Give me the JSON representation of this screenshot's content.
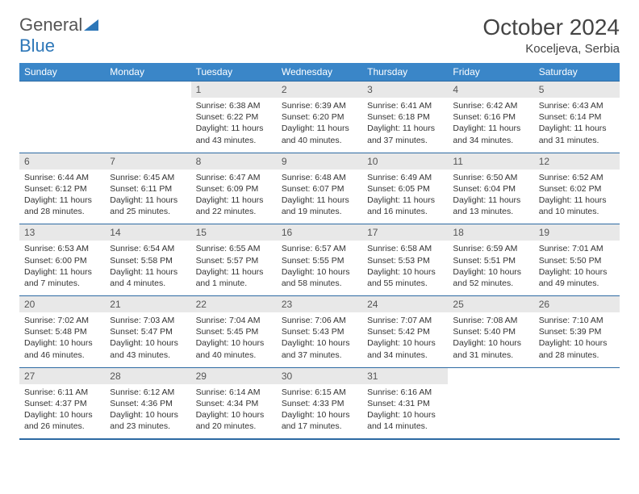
{
  "brand": {
    "name1": "General",
    "name2": "Blue"
  },
  "title": "October 2024",
  "location": "Koceljeva, Serbia",
  "colors": {
    "header_bg": "#3a86c8",
    "border": "#2d6aa3",
    "daynum_bg": "#e8e8e8",
    "text": "#333333",
    "brand_blue": "#2d77b8"
  },
  "day_headers": [
    "Sunday",
    "Monday",
    "Tuesday",
    "Wednesday",
    "Thursday",
    "Friday",
    "Saturday"
  ],
  "weeks": [
    {
      "nums": [
        "",
        "",
        "1",
        "2",
        "3",
        "4",
        "5"
      ],
      "cells": [
        null,
        null,
        {
          "sr": "Sunrise: 6:38 AM",
          "ss": "Sunset: 6:22 PM",
          "dl": "Daylight: 11 hours and 43 minutes."
        },
        {
          "sr": "Sunrise: 6:39 AM",
          "ss": "Sunset: 6:20 PM",
          "dl": "Daylight: 11 hours and 40 minutes."
        },
        {
          "sr": "Sunrise: 6:41 AM",
          "ss": "Sunset: 6:18 PM",
          "dl": "Daylight: 11 hours and 37 minutes."
        },
        {
          "sr": "Sunrise: 6:42 AM",
          "ss": "Sunset: 6:16 PM",
          "dl": "Daylight: 11 hours and 34 minutes."
        },
        {
          "sr": "Sunrise: 6:43 AM",
          "ss": "Sunset: 6:14 PM",
          "dl": "Daylight: 11 hours and 31 minutes."
        }
      ]
    },
    {
      "nums": [
        "6",
        "7",
        "8",
        "9",
        "10",
        "11",
        "12"
      ],
      "cells": [
        {
          "sr": "Sunrise: 6:44 AM",
          "ss": "Sunset: 6:12 PM",
          "dl": "Daylight: 11 hours and 28 minutes."
        },
        {
          "sr": "Sunrise: 6:45 AM",
          "ss": "Sunset: 6:11 PM",
          "dl": "Daylight: 11 hours and 25 minutes."
        },
        {
          "sr": "Sunrise: 6:47 AM",
          "ss": "Sunset: 6:09 PM",
          "dl": "Daylight: 11 hours and 22 minutes."
        },
        {
          "sr": "Sunrise: 6:48 AM",
          "ss": "Sunset: 6:07 PM",
          "dl": "Daylight: 11 hours and 19 minutes."
        },
        {
          "sr": "Sunrise: 6:49 AM",
          "ss": "Sunset: 6:05 PM",
          "dl": "Daylight: 11 hours and 16 minutes."
        },
        {
          "sr": "Sunrise: 6:50 AM",
          "ss": "Sunset: 6:04 PM",
          "dl": "Daylight: 11 hours and 13 minutes."
        },
        {
          "sr": "Sunrise: 6:52 AM",
          "ss": "Sunset: 6:02 PM",
          "dl": "Daylight: 11 hours and 10 minutes."
        }
      ]
    },
    {
      "nums": [
        "13",
        "14",
        "15",
        "16",
        "17",
        "18",
        "19"
      ],
      "cells": [
        {
          "sr": "Sunrise: 6:53 AM",
          "ss": "Sunset: 6:00 PM",
          "dl": "Daylight: 11 hours and 7 minutes."
        },
        {
          "sr": "Sunrise: 6:54 AM",
          "ss": "Sunset: 5:58 PM",
          "dl": "Daylight: 11 hours and 4 minutes."
        },
        {
          "sr": "Sunrise: 6:55 AM",
          "ss": "Sunset: 5:57 PM",
          "dl": "Daylight: 11 hours and 1 minute."
        },
        {
          "sr": "Sunrise: 6:57 AM",
          "ss": "Sunset: 5:55 PM",
          "dl": "Daylight: 10 hours and 58 minutes."
        },
        {
          "sr": "Sunrise: 6:58 AM",
          "ss": "Sunset: 5:53 PM",
          "dl": "Daylight: 10 hours and 55 minutes."
        },
        {
          "sr": "Sunrise: 6:59 AM",
          "ss": "Sunset: 5:51 PM",
          "dl": "Daylight: 10 hours and 52 minutes."
        },
        {
          "sr": "Sunrise: 7:01 AM",
          "ss": "Sunset: 5:50 PM",
          "dl": "Daylight: 10 hours and 49 minutes."
        }
      ]
    },
    {
      "nums": [
        "20",
        "21",
        "22",
        "23",
        "24",
        "25",
        "26"
      ],
      "cells": [
        {
          "sr": "Sunrise: 7:02 AM",
          "ss": "Sunset: 5:48 PM",
          "dl": "Daylight: 10 hours and 46 minutes."
        },
        {
          "sr": "Sunrise: 7:03 AM",
          "ss": "Sunset: 5:47 PM",
          "dl": "Daylight: 10 hours and 43 minutes."
        },
        {
          "sr": "Sunrise: 7:04 AM",
          "ss": "Sunset: 5:45 PM",
          "dl": "Daylight: 10 hours and 40 minutes."
        },
        {
          "sr": "Sunrise: 7:06 AM",
          "ss": "Sunset: 5:43 PM",
          "dl": "Daylight: 10 hours and 37 minutes."
        },
        {
          "sr": "Sunrise: 7:07 AM",
          "ss": "Sunset: 5:42 PM",
          "dl": "Daylight: 10 hours and 34 minutes."
        },
        {
          "sr": "Sunrise: 7:08 AM",
          "ss": "Sunset: 5:40 PM",
          "dl": "Daylight: 10 hours and 31 minutes."
        },
        {
          "sr": "Sunrise: 7:10 AM",
          "ss": "Sunset: 5:39 PM",
          "dl": "Daylight: 10 hours and 28 minutes."
        }
      ]
    },
    {
      "nums": [
        "27",
        "28",
        "29",
        "30",
        "31",
        "",
        ""
      ],
      "cells": [
        {
          "sr": "Sunrise: 6:11 AM",
          "ss": "Sunset: 4:37 PM",
          "dl": "Daylight: 10 hours and 26 minutes."
        },
        {
          "sr": "Sunrise: 6:12 AM",
          "ss": "Sunset: 4:36 PM",
          "dl": "Daylight: 10 hours and 23 minutes."
        },
        {
          "sr": "Sunrise: 6:14 AM",
          "ss": "Sunset: 4:34 PM",
          "dl": "Daylight: 10 hours and 20 minutes."
        },
        {
          "sr": "Sunrise: 6:15 AM",
          "ss": "Sunset: 4:33 PM",
          "dl": "Daylight: 10 hours and 17 minutes."
        },
        {
          "sr": "Sunrise: 6:16 AM",
          "ss": "Sunset: 4:31 PM",
          "dl": "Daylight: 10 hours and 14 minutes."
        },
        null,
        null
      ]
    }
  ]
}
